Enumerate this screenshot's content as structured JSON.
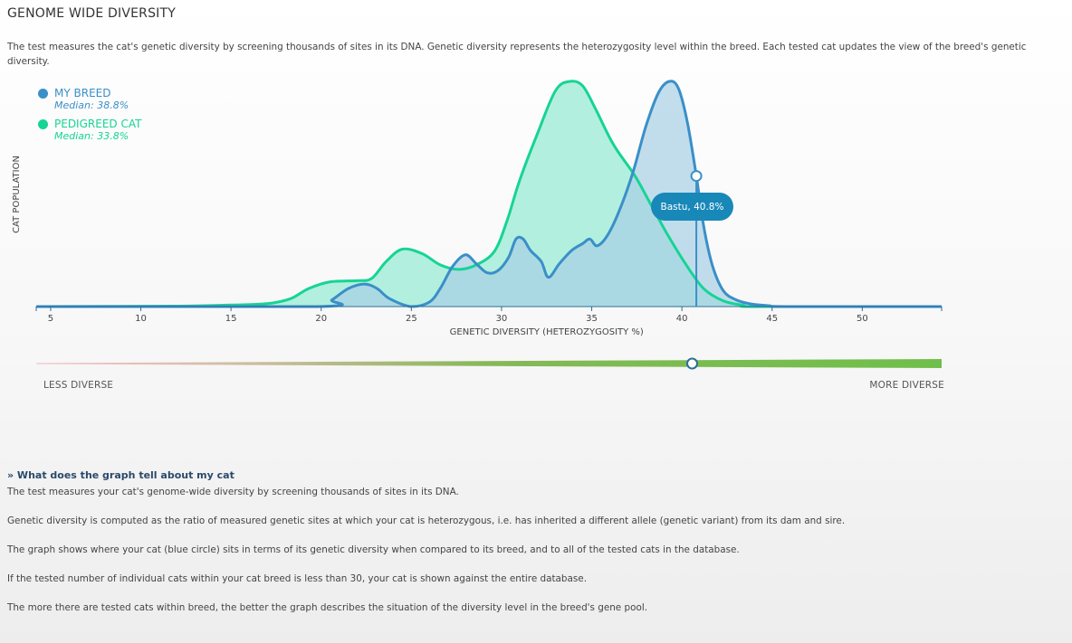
{
  "page": {
    "title": "GENOME WIDE DIVERSITY",
    "intro": "The test measures the cat's genetic diversity by screening thousands of sites in its DNA. Genetic diversity represents the heterozygosity level within the breed. Each tested cat updates the view of the breed's genetic diversity."
  },
  "legend": {
    "items": [
      {
        "name": "MY BREED",
        "median": "Median: 38.8%",
        "color": "#3a8fc8"
      },
      {
        "name": "PEDIGREED CAT",
        "median": "Median: 33.8%",
        "color": "#16d494"
      }
    ]
  },
  "tooltip": {
    "text": "Bastu, 40.8%"
  },
  "scale": {
    "low_label": "LESS DIVERSE",
    "high_label": "MORE DIVERSE"
  },
  "info": {
    "heading": "» What does the graph tell about my cat",
    "paragraphs": [
      "The test measures your cat's genome-wide diversity by screening thousands of sites in its DNA.",
      "Genetic diversity is computed as the ratio of measured genetic sites at which your cat is heterozygous, i.e. has inherited a different allele (genetic variant) from its dam and sire.",
      "The graph shows where your cat (blue circle) sits in terms of its genetic diversity when compared to its breed, and to all of the tested cats in the database.",
      "If the tested number of individual cats within your cat breed is less than 30, your cat is shown against the entire database.",
      "The more there are tested cats within breed, the better the graph describes the situation of the diversity level in the breed's gene pool."
    ]
  },
  "chart_data": {
    "type": "area",
    "xlabel": "GENETIC DIVERSITY (HETEROZYGOSITY %)",
    "ylabel": "CAT POPULATION",
    "xlim": [
      4.2,
      54.4
    ],
    "ylim": [
      0,
      1
    ],
    "xticks": [
      5,
      10,
      15,
      20,
      25,
      30,
      35,
      40,
      45,
      50
    ],
    "grid": false,
    "legend_position": "top-left",
    "highlight": {
      "name": "Bastu",
      "x": 40.8
    },
    "series": [
      {
        "name": "PEDIGREED CAT",
        "color": "#16d494",
        "fill": "#aeeedc",
        "points": [
          [
            4.2,
            0
          ],
          [
            12,
            0.002
          ],
          [
            15,
            0.007
          ],
          [
            17,
            0.013
          ],
          [
            18.3,
            0.035
          ],
          [
            19.3,
            0.08
          ],
          [
            20.5,
            0.11
          ],
          [
            22,
            0.115
          ],
          [
            22.8,
            0.125
          ],
          [
            23.6,
            0.2
          ],
          [
            24.5,
            0.255
          ],
          [
            25.6,
            0.235
          ],
          [
            26.6,
            0.185
          ],
          [
            27.6,
            0.165
          ],
          [
            28.6,
            0.185
          ],
          [
            29.6,
            0.245
          ],
          [
            30.3,
            0.38
          ],
          [
            31,
            0.56
          ],
          [
            32,
            0.77
          ],
          [
            33,
            0.96
          ],
          [
            33.8,
            1.0
          ],
          [
            34.5,
            0.98
          ],
          [
            35.2,
            0.88
          ],
          [
            36.2,
            0.72
          ],
          [
            37.4,
            0.58
          ],
          [
            38.3,
            0.45
          ],
          [
            39.2,
            0.32
          ],
          [
            40.2,
            0.19
          ],
          [
            41.2,
            0.08
          ],
          [
            42.3,
            0.025
          ],
          [
            43.4,
            0.006
          ],
          [
            44.3,
            0
          ],
          [
            54.4,
            0
          ]
        ]
      },
      {
        "name": "MY BREED",
        "color": "#3a8fc8",
        "fill": "#a8d0e6",
        "points": [
          [
            4.2,
            0
          ],
          [
            19.8,
            0
          ],
          [
            20.6,
            0.03
          ],
          [
            21.5,
            0.08
          ],
          [
            22.4,
            0.1
          ],
          [
            23.1,
            0.08
          ],
          [
            23.8,
            0.035
          ],
          [
            25,
            0
          ],
          [
            26,
            0.02
          ],
          [
            26.6,
            0.08
          ],
          [
            27.3,
            0.18
          ],
          [
            28,
            0.23
          ],
          [
            28.6,
            0.19
          ],
          [
            29.2,
            0.15
          ],
          [
            29.8,
            0.16
          ],
          [
            30.4,
            0.22
          ],
          [
            30.8,
            0.3
          ],
          [
            31.2,
            0.3
          ],
          [
            31.6,
            0.25
          ],
          [
            32.2,
            0.2
          ],
          [
            32.6,
            0.13
          ],
          [
            33.2,
            0.19
          ],
          [
            33.9,
            0.25
          ],
          [
            34.5,
            0.28
          ],
          [
            34.9,
            0.3
          ],
          [
            35.3,
            0.27
          ],
          [
            35.9,
            0.32
          ],
          [
            36.6,
            0.44
          ],
          [
            37.3,
            0.6
          ],
          [
            38,
            0.8
          ],
          [
            38.7,
            0.95
          ],
          [
            39.3,
            1.0
          ],
          [
            39.8,
            0.97
          ],
          [
            40.3,
            0.82
          ],
          [
            40.8,
            0.58
          ],
          [
            41.2,
            0.36
          ],
          [
            41.7,
            0.18
          ],
          [
            42.3,
            0.07
          ],
          [
            43,
            0.03
          ],
          [
            43.8,
            0.012
          ],
          [
            44.8,
            0.004
          ],
          [
            46,
            0
          ],
          [
            54.4,
            0
          ]
        ]
      }
    ]
  },
  "diversity_scale": {
    "position_fraction": 0.7245,
    "gradient_colors": [
      "#f4a3b0",
      "#86b857",
      "#6fbf4a"
    ]
  }
}
